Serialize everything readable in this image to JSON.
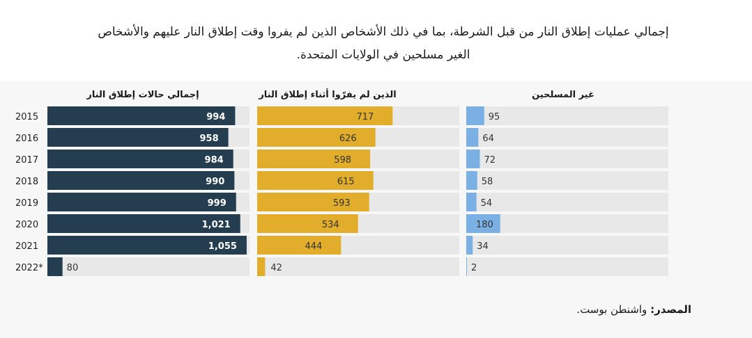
{
  "title": "إجمالي عمليات إطلاق النار من قبل الشرطة، بما في ذلك الأشخاص الذين لم يفروا وقت إطلاق النار عليهم والأشخاص الغير مسلحين في الولايات المتحدة.",
  "source": {
    "label": "المصدر:",
    "text": "واشنطن بوست."
  },
  "colors": {
    "total": "#243d4f",
    "not_fleeing": "#e2ad2a",
    "unarmed": "#7ab0e4",
    "track": "#e8e8e8",
    "panel_bg": "#f7f7f7"
  },
  "chart_data": {
    "type": "bar",
    "categories": [
      "2015",
      "2016",
      "2017",
      "2018",
      "2019",
      "2020",
      "2021",
      "2022*"
    ],
    "series": [
      {
        "name": "إجمالي حالات إطلاق النار",
        "values": [
          994,
          958,
          984,
          990,
          999,
          1021,
          1055,
          80
        ],
        "labels": [
          "994",
          "958",
          "984",
          "990",
          "999",
          "1,021",
          "1,055",
          "80"
        ],
        "max": 1070
      },
      {
        "name": "الذين لم يفرّوا أثناء إطلاق النار",
        "values": [
          717,
          626,
          598,
          615,
          593,
          534,
          444,
          42
        ],
        "labels": [
          "717",
          "626",
          "598",
          "615",
          "593",
          "534",
          "444",
          "42"
        ],
        "max": 1070
      },
      {
        "name": "غير المسلحين",
        "values": [
          95,
          64,
          72,
          58,
          54,
          180,
          34,
          2
        ],
        "labels": [
          "95",
          "64",
          "72",
          "58",
          "54",
          "180",
          "34",
          "2"
        ],
        "max": 1070
      }
    ]
  }
}
